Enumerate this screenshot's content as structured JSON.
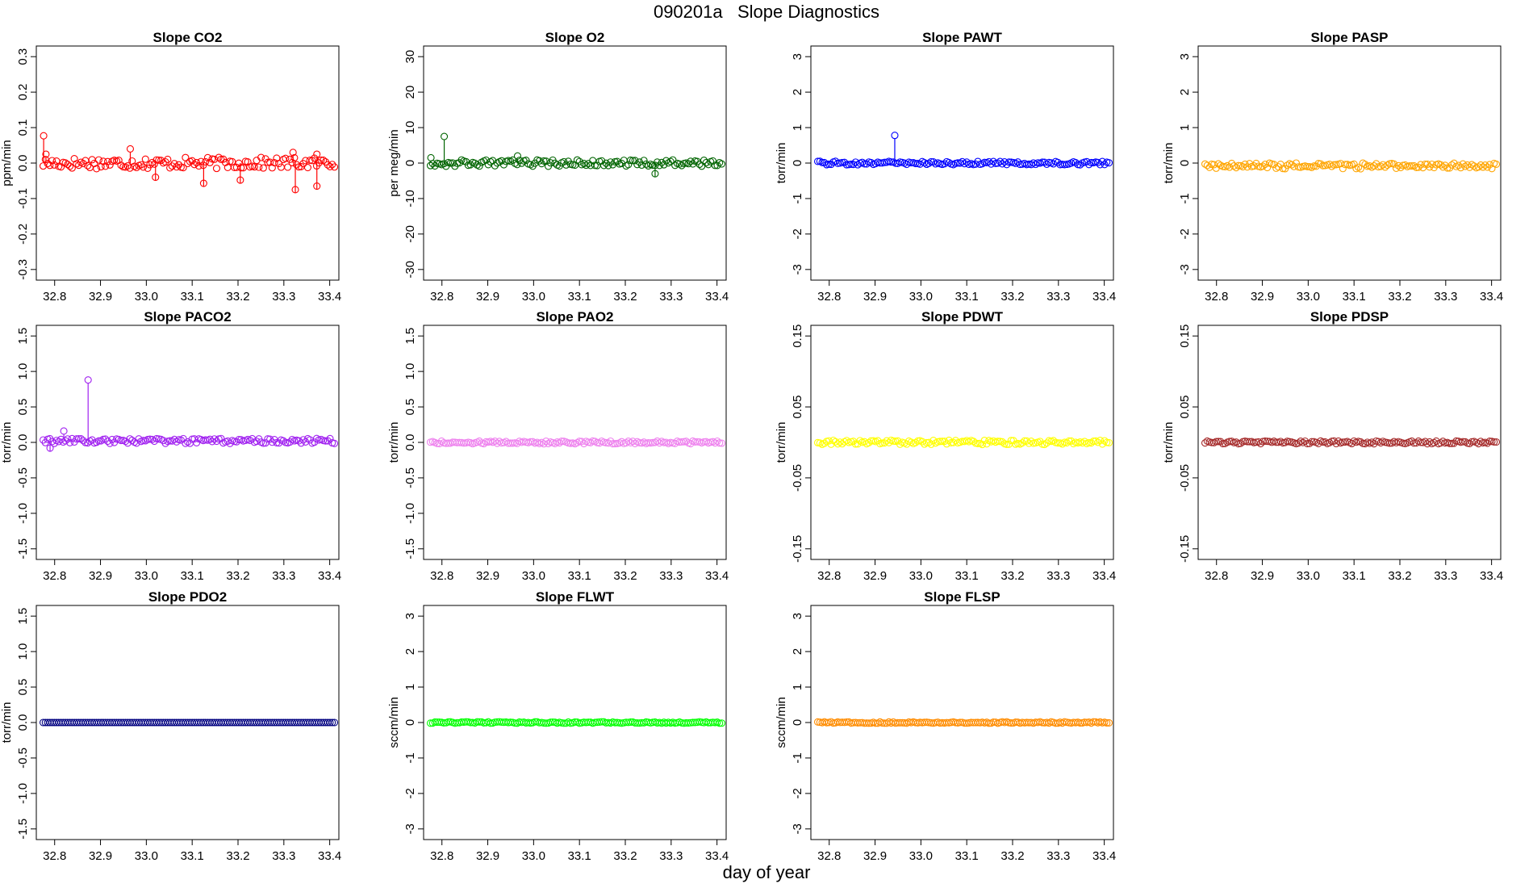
{
  "page": {
    "title": "090201a   Slope Diagnostics",
    "xlabel": "day of year"
  },
  "xaxis": {
    "xlim": [
      32.76,
      33.42
    ],
    "ticks": [
      32.8,
      32.9,
      33.0,
      33.1,
      33.2,
      33.3,
      33.4
    ],
    "tick_labels": [
      "32.8",
      "32.9",
      "33.0",
      "33.1",
      "33.2",
      "33.3",
      "33.4"
    ],
    "n_points": 132,
    "x_start": 32.775,
    "x_step": 0.00485
  },
  "chart_data": [
    {
      "type": "scatter",
      "title": "Slope CO2",
      "ylabel": "ppm/min",
      "color": "#ff0000",
      "ylim": [
        -0.33,
        0.33
      ],
      "yticks": [
        -0.3,
        -0.2,
        -0.1,
        0.0,
        0.1,
        0.2,
        0.3
      ],
      "ytick_labels": [
        "-0.3",
        "-0.2",
        "-0.1",
        "0.0",
        "0.1",
        "0.2",
        "0.3"
      ],
      "spread": 0.016,
      "base": 0.0,
      "outliers": [
        {
          "x": 32.776,
          "y": 0.077
        },
        {
          "x": 32.781,
          "y": 0.025
        },
        {
          "x": 32.965,
          "y": 0.04
        },
        {
          "x": 33.02,
          "y": -0.04
        },
        {
          "x": 33.125,
          "y": -0.057
        },
        {
          "x": 33.205,
          "y": -0.048
        },
        {
          "x": 33.32,
          "y": 0.03
        },
        {
          "x": 33.325,
          "y": -0.075
        },
        {
          "x": 33.372,
          "y": -0.065
        },
        {
          "x": 33.372,
          "y": 0.025
        }
      ]
    },
    {
      "type": "scatter",
      "title": "Slope O2",
      "ylabel": "per meg/min",
      "color": "#006400",
      "ylim": [
        -33,
        33
      ],
      "yticks": [
        -30,
        -20,
        -10,
        0,
        10,
        20,
        30
      ],
      "ytick_labels": [
        "-30",
        "-20",
        "-10",
        "0",
        "10",
        "20",
        "30"
      ],
      "spread": 0.9,
      "base": 0.0,
      "outliers": [
        {
          "x": 32.805,
          "y": 7.5
        },
        {
          "x": 32.776,
          "y": 1.5
        },
        {
          "x": 32.965,
          "y": 2.0
        },
        {
          "x": 33.265,
          "y": -3.0
        }
      ]
    },
    {
      "type": "scatter",
      "title": "Slope PAWT",
      "ylabel": "torr/min",
      "color": "#0000ff",
      "ylim": [
        -3.3,
        3.3
      ],
      "yticks": [
        -3,
        -2,
        -1,
        0,
        1,
        2,
        3
      ],
      "ytick_labels": [
        "-3",
        "-2",
        "-1",
        "0",
        "1",
        "2",
        "3"
      ],
      "spread": 0.05,
      "base": 0.0,
      "outliers": [
        {
          "x": 32.943,
          "y": 0.78
        }
      ]
    },
    {
      "type": "scatter",
      "title": "Slope PASP",
      "ylabel": "torr/min",
      "color": "#ffa500",
      "ylim": [
        -3.3,
        3.3
      ],
      "yticks": [
        -3,
        -2,
        -1,
        0,
        1,
        2,
        3
      ],
      "ytick_labels": [
        "-3",
        "-2",
        "-1",
        "0",
        "1",
        "2",
        "3"
      ],
      "spread": 0.08,
      "base": -0.08,
      "outliers": []
    },
    {
      "type": "scatter",
      "title": "Slope PACO2",
      "ylabel": "torr/min",
      "color": "#a020f0",
      "ylim": [
        -1.65,
        1.65
      ],
      "yticks": [
        -1.5,
        -1.0,
        -0.5,
        0.0,
        0.5,
        1.0,
        1.5
      ],
      "ytick_labels": [
        "-1.5",
        "-1.0",
        "-0.5",
        "0.0",
        "0.5",
        "1.0",
        "1.5"
      ],
      "spread": 0.035,
      "base": 0.02,
      "outliers": [
        {
          "x": 32.873,
          "y": 0.88
        },
        {
          "x": 32.79,
          "y": -0.08
        },
        {
          "x": 32.82,
          "y": 0.16
        }
      ]
    },
    {
      "type": "scatter",
      "title": "Slope PAO2",
      "ylabel": "torr/min",
      "color": "#ee82ee",
      "ylim": [
        -1.65,
        1.65
      ],
      "yticks": [
        -1.5,
        -1.0,
        -0.5,
        0.0,
        0.5,
        1.0,
        1.5
      ],
      "ytick_labels": [
        "-1.5",
        "-1.0",
        "-0.5",
        "0.0",
        "0.5",
        "1.0",
        "1.5"
      ],
      "spread": 0.02,
      "base": 0.0,
      "outliers": []
    },
    {
      "type": "scatter",
      "title": "Slope PDWT",
      "ylabel": "torr/min",
      "color": "#ffff00",
      "ylim": [
        -0.165,
        0.165
      ],
      "yticks": [
        -0.15,
        -0.05,
        0.05,
        0.15
      ],
      "ytick_labels": [
        "-0.15",
        "-0.05",
        "0.05",
        "0.15"
      ],
      "spread": 0.003,
      "base": 0.0,
      "outliers": []
    },
    {
      "type": "scatter",
      "title": "Slope PDSP",
      "ylabel": "torr/min",
      "color": "#a52a2a",
      "ylim": [
        -0.165,
        0.165
      ],
      "yticks": [
        -0.15,
        -0.05,
        0.05,
        0.15
      ],
      "ytick_labels": [
        "-0.15",
        "-0.05",
        "0.05",
        "0.15"
      ],
      "spread": 0.002,
      "base": 0.0,
      "outliers": []
    },
    {
      "type": "scatter",
      "title": "Slope PDO2",
      "ylabel": "torr/min",
      "color": "#000080",
      "ylim": [
        -1.65,
        1.65
      ],
      "yticks": [
        -1.5,
        -1.0,
        -0.5,
        0.0,
        0.5,
        1.0,
        1.5
      ],
      "ytick_labels": [
        "-1.5",
        "-1.0",
        "-0.5",
        "0.0",
        "0.5",
        "1.0",
        "1.5"
      ],
      "spread": 0.0,
      "base": 0.0,
      "outliers": []
    },
    {
      "type": "scatter",
      "title": "Slope FLWT",
      "ylabel": "sccm/min",
      "color": "#00ff00",
      "ylim": [
        -3.3,
        3.3
      ],
      "yticks": [
        -3,
        -2,
        -1,
        0,
        1,
        2,
        3
      ],
      "ytick_labels": [
        "-3",
        "-2",
        "-1",
        "0",
        "1",
        "2",
        "3"
      ],
      "spread": 0.02,
      "base": 0.0,
      "outliers": []
    },
    {
      "type": "scatter",
      "title": "Slope FLSP",
      "ylabel": "sccm/min",
      "color": "#ff8c00",
      "ylim": [
        -3.3,
        3.3
      ],
      "yticks": [
        -3,
        -2,
        -1,
        0,
        1,
        2,
        3
      ],
      "ytick_labels": [
        "-3",
        "-2",
        "-1",
        "0",
        "1",
        "2",
        "3"
      ],
      "spread": 0.02,
      "base": 0.0,
      "outliers": []
    }
  ]
}
